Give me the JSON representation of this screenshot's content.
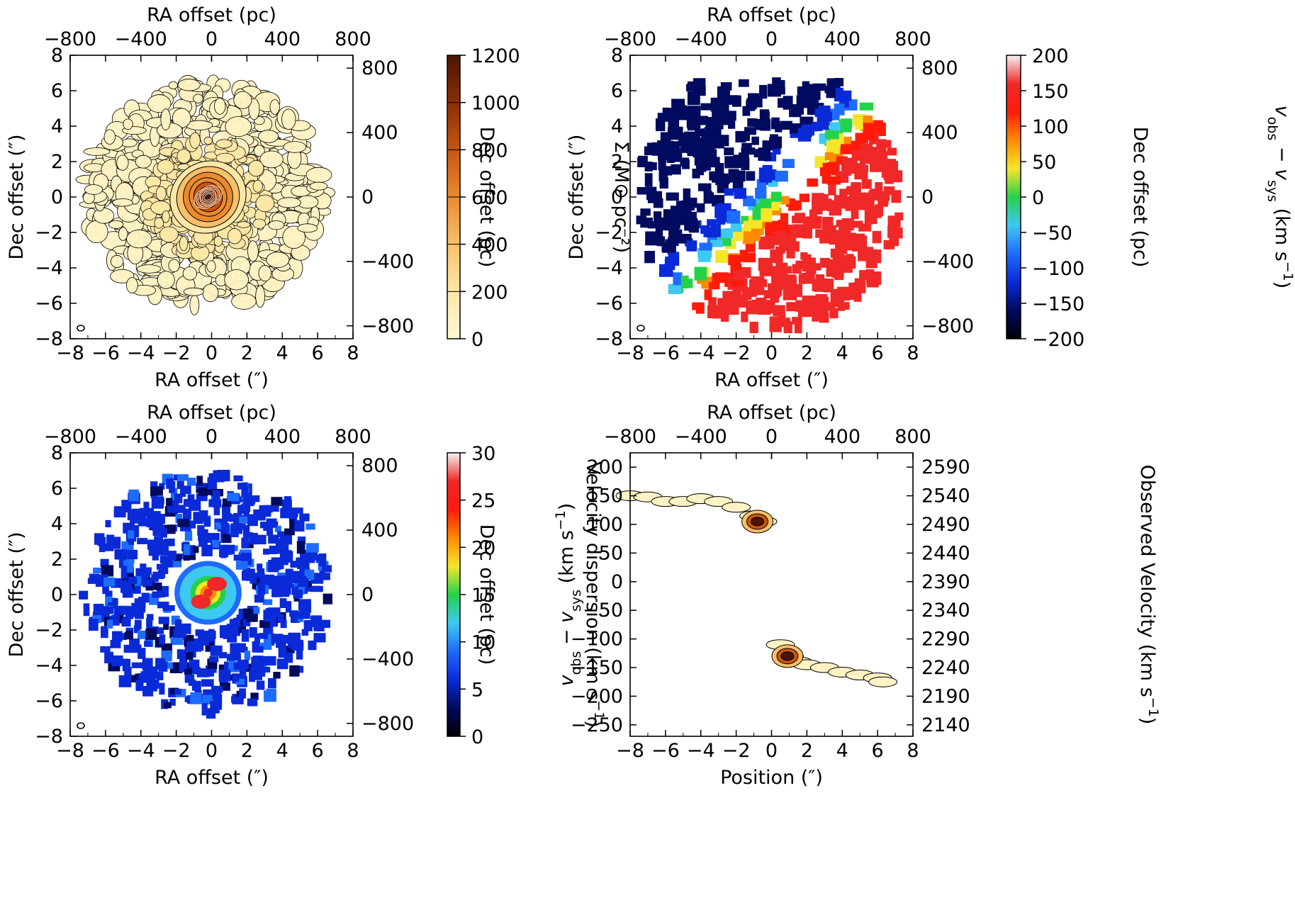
{
  "chart_data": [
    {
      "type": "heatmap",
      "panel": "surface-density",
      "xlabel": "RA offset (″)",
      "ylabel": "Dec offset (″)",
      "top_xlabel": "RA offset (pc)",
      "right_ylabel": "Dec offset (pc)",
      "xlim": [
        -8,
        8
      ],
      "ylim": [
        -8,
        8
      ],
      "xticks": [
        -8,
        -6,
        -4,
        -2,
        0,
        2,
        4,
        6,
        8
      ],
      "yticks": [
        -8,
        -6,
        -4,
        -2,
        0,
        2,
        4,
        6,
        8
      ],
      "top_ticks": [
        -800,
        -400,
        0,
        400,
        800
      ],
      "right_ticks": [
        -800,
        -400,
        0,
        400,
        800
      ],
      "colorbar": {
        "label": "Σ (M⊙ pc⁻²)",
        "range": [
          0,
          1200
        ],
        "ticks": [
          0,
          200,
          400,
          600,
          800,
          1000,
          1200
        ],
        "colormap": "YlOrBr",
        "colors": [
          "#fff7d6",
          "#fde7a6",
          "#f9c06a",
          "#eb8a2e",
          "#c65612",
          "#8a2f08",
          "#4a1502"
        ]
      },
      "structure": {
        "center_peak": [
          -0.2,
          0.0
        ],
        "inner_disk_radius_arcsec": 2.0,
        "ring_radius_arcsec": [
          3.5,
          6.5
        ],
        "peak_value": 1200
      }
    },
    {
      "type": "heatmap",
      "panel": "velocity-field",
      "xlabel": "RA offset (″)",
      "ylabel": "Dec offset (″)",
      "top_xlabel": "RA offset (pc)",
      "right_ylabel": "Dec offset (pc)",
      "xlim": [
        -8,
        8
      ],
      "ylim": [
        -8,
        8
      ],
      "xticks": [
        -8,
        -6,
        -4,
        -2,
        0,
        2,
        4,
        6,
        8
      ],
      "yticks": [
        -8,
        -6,
        -4,
        -2,
        0,
        2,
        4,
        6,
        8
      ],
      "top_ticks": [
        -800,
        -400,
        0,
        400,
        800
      ],
      "right_ticks": [
        -800,
        -400,
        0,
        400,
        800
      ],
      "colorbar": {
        "label_html": "v<sub>obs</sub> − v<sub>sys</sub> (km s⁻¹)",
        "label_parts": [
          "v",
          "obs",
          " − ",
          "v",
          "sys",
          " (km s",
          "−1",
          ")"
        ],
        "range": [
          -200,
          200
        ],
        "ticks": [
          -200,
          -150,
          -100,
          -50,
          0,
          50,
          100,
          150,
          200
        ],
        "colormap": "jet",
        "colors": [
          "#000000",
          "#000a5e",
          "#0a2ad8",
          "#1e6cff",
          "#3ec8f2",
          "#24d24a",
          "#f6e62a",
          "#ff8a00",
          "#ff1a0a",
          "#f02828",
          "#f4f4f4"
        ]
      },
      "structure": {
        "approaching_side": "north-east",
        "receding_side": "south-west",
        "velocity_range": [
          -180,
          160
        ]
      }
    },
    {
      "type": "heatmap",
      "panel": "velocity-dispersion",
      "xlabel": "RA offset (″)",
      "ylabel": "Dec offset (″)",
      "top_xlabel": "RA offset (pc)",
      "right_ylabel": "Dec offset (pc)",
      "xlim": [
        -8,
        8
      ],
      "ylim": [
        -8,
        8
      ],
      "xticks": [
        -8,
        -6,
        -4,
        -2,
        0,
        2,
        4,
        6,
        8
      ],
      "yticks": [
        -8,
        -6,
        -4,
        -2,
        0,
        2,
        4,
        6,
        8
      ],
      "top_ticks": [
        -800,
        -400,
        0,
        400,
        800
      ],
      "right_ticks": [
        -800,
        -400,
        0,
        400,
        800
      ],
      "colorbar": {
        "label_parts": [
          "Velocity dispersion (km s",
          "−1",
          ")"
        ],
        "range": [
          0,
          30
        ],
        "ticks": [
          0,
          5,
          10,
          15,
          20,
          25,
          30
        ],
        "colormap": "jet",
        "colors": [
          "#000000",
          "#000a5e",
          "#0a2ad8",
          "#1e6cff",
          "#3ec8f2",
          "#24d24a",
          "#f6e62a",
          "#ff8a00",
          "#ff1a0a",
          "#f02828",
          "#f4f4f4"
        ]
      },
      "structure": {
        "central_peak_value": 25,
        "ring_value": 5,
        "central_region_radius_arcsec": 1.8
      }
    },
    {
      "type": "heatmap",
      "panel": "position-velocity",
      "xlabel": "Position (″)",
      "ylabel_parts": [
        "v",
        "obs",
        " − ",
        "v",
        "sys",
        " (km s",
        "−1",
        ")"
      ],
      "top_xlabel": "RA offset (pc)",
      "right_ylabel_parts": [
        "Observed Velocity (km s",
        "−1",
        ")"
      ],
      "xlim": [
        -8,
        8
      ],
      "ylim": [
        -270,
        225
      ],
      "xticks": [
        -8,
        -6,
        -4,
        -2,
        0,
        2,
        4,
        6,
        8
      ],
      "yticks": [
        -250,
        -200,
        -150,
        -100,
        -50,
        0,
        50,
        100,
        150,
        200
      ],
      "top_ticks": [
        -800,
        -400,
        0,
        400,
        800
      ],
      "right_ticks": [
        2140,
        2190,
        2240,
        2290,
        2340,
        2390,
        2440,
        2490,
        2540,
        2590
      ],
      "v_sys": 2390,
      "features": [
        {
          "x": [
            -8,
            -7,
            -6,
            -5,
            -4,
            -3,
            -2,
            -1,
            -0.5
          ],
          "y": [
            150,
            148,
            140,
            140,
            145,
            140,
            130,
            115,
            105
          ]
        },
        {
          "x": [
            0.5,
            1,
            1.5,
            2,
            3,
            4,
            5,
            6,
            6.3
          ],
          "y": [
            -110,
            -130,
            -140,
            -145,
            -150,
            -158,
            -163,
            -168,
            -175
          ]
        }
      ]
    }
  ]
}
